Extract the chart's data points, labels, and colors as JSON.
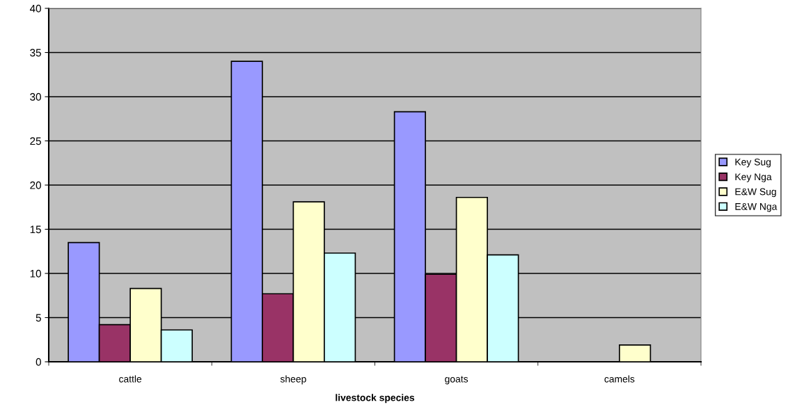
{
  "chart_data": {
    "type": "bar",
    "xlabel": "livestock species",
    "categories": [
      "cattle",
      "sheep",
      "goats",
      "camels"
    ],
    "series": [
      {
        "name": "Key Sug",
        "color": "#9999ff",
        "values": [
          13.5,
          34.0,
          28.3,
          0
        ]
      },
      {
        "name": "Key Nga",
        "color": "#993366",
        "values": [
          4.2,
          7.7,
          9.9,
          0
        ]
      },
      {
        "name": "E&W Sug",
        "color": "#ffffcc",
        "values": [
          8.3,
          18.1,
          18.6,
          1.9
        ]
      },
      {
        "name": "E&W Nga",
        "color": "#ccffff",
        "values": [
          3.6,
          12.3,
          12.1,
          0
        ]
      }
    ],
    "ylim": [
      0,
      40
    ],
    "yticks": [
      0,
      5,
      10,
      15,
      20,
      25,
      30,
      35,
      40
    ],
    "grid": "y",
    "legend": "right"
  }
}
